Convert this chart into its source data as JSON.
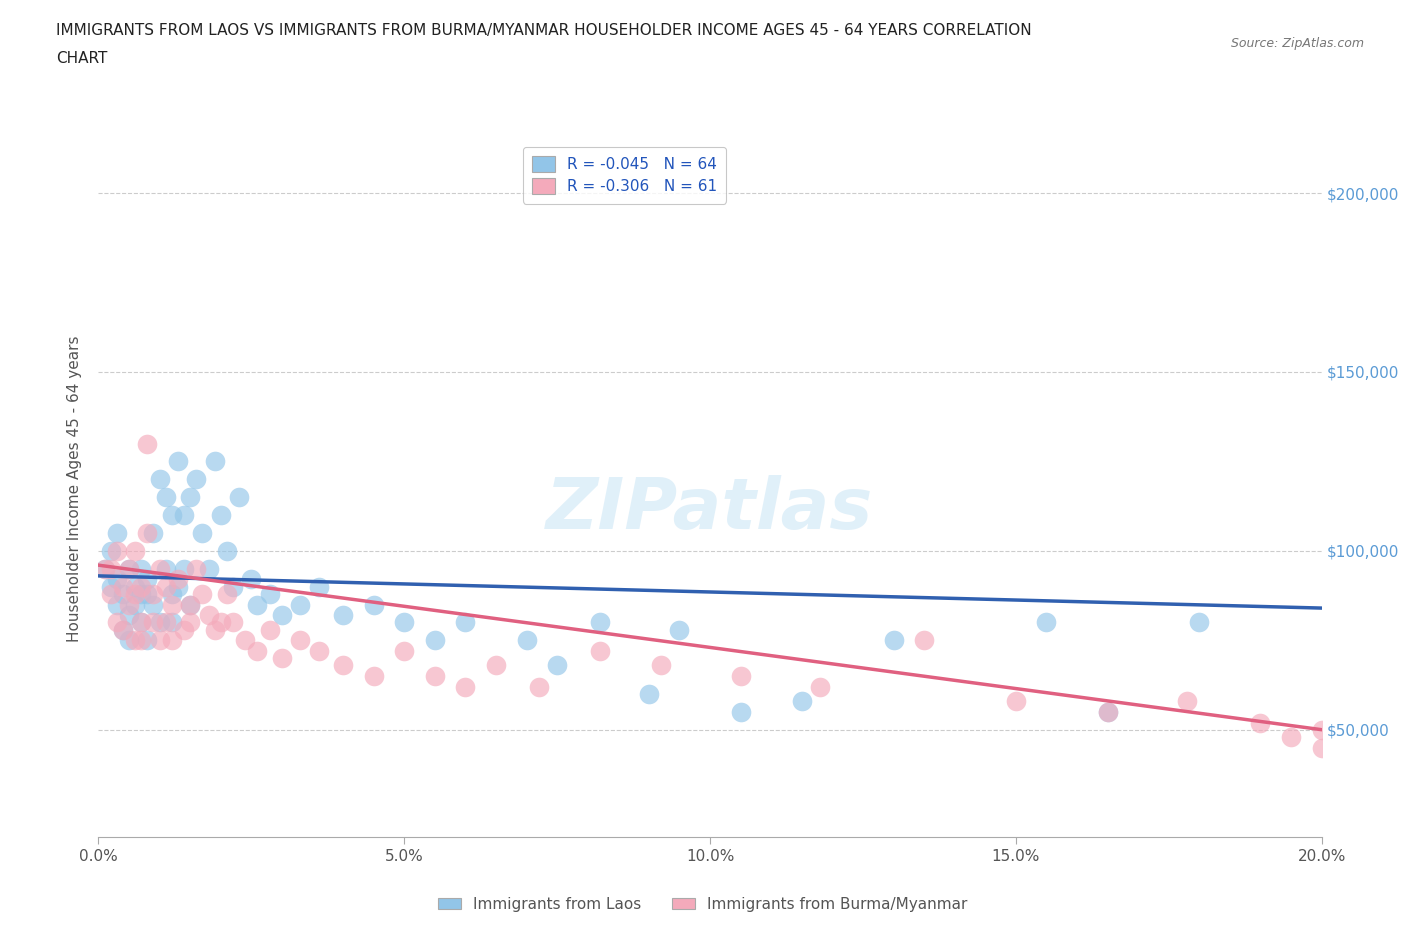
{
  "title_line1": "IMMIGRANTS FROM LAOS VS IMMIGRANTS FROM BURMA/MYANMAR HOUSEHOLDER INCOME AGES 45 - 64 YEARS CORRELATION",
  "title_line2": "CHART",
  "source": "Source: ZipAtlas.com",
  "ylabel": "Householder Income Ages 45 - 64 years",
  "xlim": [
    0.0,
    0.2
  ],
  "ylim": [
    20000,
    215000
  ],
  "yticks": [
    50000,
    100000,
    150000,
    200000
  ],
  "ytick_labels": [
    "$50,000",
    "$100,000",
    "$150,000",
    "$200,000"
  ],
  "xticks": [
    0.0,
    0.05,
    0.1,
    0.15,
    0.2
  ],
  "xtick_labels": [
    "0.0%",
    "5.0%",
    "10.0%",
    "15.0%",
    "20.0%"
  ],
  "legend_labels": [
    "Immigrants from Laos",
    "Immigrants from Burma/Myanmar"
  ],
  "legend_r_n": [
    {
      "R": "-0.045",
      "N": "64"
    },
    {
      "R": "-0.306",
      "N": "61"
    }
  ],
  "laos_color": "#92C5E8",
  "burma_color": "#F4AABB",
  "laos_line_color": "#3060B0",
  "burma_line_color": "#E06080",
  "background_color": "#FFFFFF",
  "watermark": "ZIPatlas",
  "laos_x": [
    0.001,
    0.002,
    0.002,
    0.003,
    0.003,
    0.003,
    0.004,
    0.004,
    0.005,
    0.005,
    0.005,
    0.006,
    0.006,
    0.007,
    0.007,
    0.007,
    0.008,
    0.008,
    0.008,
    0.009,
    0.009,
    0.01,
    0.01,
    0.011,
    0.011,
    0.012,
    0.012,
    0.012,
    0.013,
    0.013,
    0.014,
    0.014,
    0.015,
    0.015,
    0.016,
    0.017,
    0.018,
    0.019,
    0.02,
    0.021,
    0.022,
    0.023,
    0.025,
    0.026,
    0.028,
    0.03,
    0.033,
    0.036,
    0.04,
    0.045,
    0.05,
    0.055,
    0.06,
    0.07,
    0.075,
    0.082,
    0.09,
    0.095,
    0.105,
    0.115,
    0.13,
    0.155,
    0.165,
    0.18
  ],
  "laos_y": [
    95000,
    90000,
    100000,
    85000,
    92000,
    105000,
    88000,
    78000,
    95000,
    82000,
    75000,
    90000,
    85000,
    88000,
    95000,
    80000,
    92000,
    75000,
    88000,
    85000,
    105000,
    80000,
    120000,
    95000,
    115000,
    88000,
    110000,
    80000,
    125000,
    90000,
    95000,
    110000,
    115000,
    85000,
    120000,
    105000,
    95000,
    125000,
    110000,
    100000,
    90000,
    115000,
    92000,
    85000,
    88000,
    82000,
    85000,
    90000,
    82000,
    85000,
    80000,
    75000,
    80000,
    75000,
    68000,
    80000,
    60000,
    78000,
    55000,
    58000,
    75000,
    80000,
    55000,
    80000
  ],
  "burma_x": [
    0.001,
    0.002,
    0.002,
    0.003,
    0.003,
    0.004,
    0.004,
    0.005,
    0.005,
    0.006,
    0.006,
    0.006,
    0.007,
    0.007,
    0.007,
    0.008,
    0.008,
    0.009,
    0.009,
    0.01,
    0.01,
    0.011,
    0.011,
    0.012,
    0.012,
    0.013,
    0.014,
    0.015,
    0.015,
    0.016,
    0.017,
    0.018,
    0.019,
    0.02,
    0.021,
    0.022,
    0.024,
    0.026,
    0.028,
    0.03,
    0.033,
    0.036,
    0.04,
    0.045,
    0.05,
    0.055,
    0.06,
    0.065,
    0.072,
    0.082,
    0.092,
    0.105,
    0.118,
    0.135,
    0.15,
    0.165,
    0.178,
    0.19,
    0.195,
    0.2,
    0.2
  ],
  "burma_y": [
    95000,
    88000,
    95000,
    80000,
    100000,
    90000,
    78000,
    85000,
    95000,
    88000,
    75000,
    100000,
    80000,
    90000,
    75000,
    105000,
    130000,
    88000,
    80000,
    95000,
    75000,
    90000,
    80000,
    85000,
    75000,
    92000,
    78000,
    80000,
    85000,
    95000,
    88000,
    82000,
    78000,
    80000,
    88000,
    80000,
    75000,
    72000,
    78000,
    70000,
    75000,
    72000,
    68000,
    65000,
    72000,
    65000,
    62000,
    68000,
    62000,
    72000,
    68000,
    65000,
    62000,
    75000,
    58000,
    55000,
    58000,
    52000,
    48000,
    45000,
    50000
  ],
  "laos_line_x0": 0.0,
  "laos_line_y0": 93000,
  "laos_line_x1": 0.2,
  "laos_line_y1": 84000,
  "burma_line_x0": 0.0,
  "burma_line_y0": 96000,
  "burma_line_x1": 0.2,
  "burma_line_y1": 50000
}
